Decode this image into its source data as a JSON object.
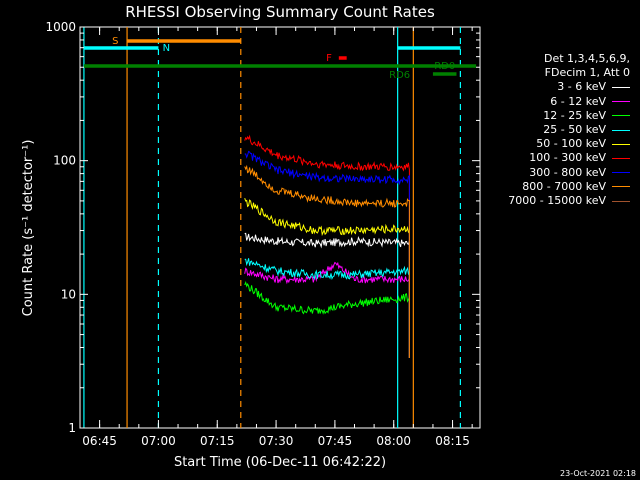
{
  "chart_data": {
    "type": "line",
    "title": "RHESSI Observing Summary Count Rates",
    "xlabel": "Start Time (06-Dec-11 06:42:22)",
    "ylabel": "Count Rate (s⁻¹ detector⁻¹)",
    "yscale": "log",
    "ylim": [
      1,
      1000
    ],
    "xlim": [
      "06:40",
      "08:22"
    ],
    "y_ticks": [
      "1",
      "10",
      "100",
      "1000"
    ],
    "x_ticks": [
      "06:45",
      "07:00",
      "07:15",
      "07:30",
      "07:45",
      "08:00",
      "08:15"
    ],
    "background": "#000000",
    "legend_header": [
      "Det 1,3,4,5,6,9,",
      "FDecim 1, Att 0"
    ],
    "legend_position": "right",
    "series": [
      {
        "name": "3 - 6 keV",
        "color": "#ffffff",
        "x": [
          "07:22",
          "07:30",
          "07:40",
          "07:50",
          "08:04"
        ],
        "values": [
          27,
          25,
          24,
          25,
          24
        ]
      },
      {
        "name": "6 - 12 keV",
        "color": "#ff00ff",
        "x": [
          "07:22",
          "07:30",
          "07:40",
          "07:45",
          "07:50",
          "08:04"
        ],
        "values": [
          15,
          13,
          13,
          17,
          13,
          13
        ]
      },
      {
        "name": "12 - 25 keV",
        "color": "#00ff00",
        "x": [
          "07:22",
          "07:30",
          "07:40",
          "07:50",
          "08:04"
        ],
        "values": [
          12,
          8,
          7.5,
          8.5,
          9.5
        ]
      },
      {
        "name": "25 - 50 keV",
        "color": "#00ffff",
        "x": [
          "07:22",
          "07:30",
          "07:40",
          "07:50",
          "08:04"
        ],
        "values": [
          18,
          15,
          14,
          14,
          15
        ]
      },
      {
        "name": "50 - 100 keV",
        "color": "#ffff00",
        "x": [
          "07:22",
          "07:30",
          "07:40",
          "07:50",
          "08:04"
        ],
        "values": [
          50,
          35,
          30,
          30,
          31
        ]
      },
      {
        "name": "100 - 300 keV",
        "color": "#ff0000",
        "x": [
          "07:22",
          "07:30",
          "07:40",
          "07:50",
          "08:04"
        ],
        "values": [
          150,
          110,
          95,
          90,
          90
        ]
      },
      {
        "name": "300 - 800 keV",
        "color": "#0000ff",
        "x": [
          "07:22",
          "07:30",
          "07:40",
          "07:50",
          "08:04"
        ],
        "values": [
          115,
          85,
          75,
          73,
          72
        ]
      },
      {
        "name": "800 - 7000 keV",
        "color": "#ff8c00",
        "x": [
          "07:22",
          "07:30",
          "07:40",
          "07:50",
          "08:04"
        ],
        "values": [
          90,
          60,
          52,
          48,
          48
        ]
      },
      {
        "name": "7000 - 15000 keV",
        "color": "#a0522d",
        "x": [],
        "values": []
      }
    ],
    "vertical_lines": [
      {
        "time": "06:41",
        "color": "#00ffff",
        "style": "solid"
      },
      {
        "time": "06:52",
        "color": "#ff8c00",
        "style": "solid"
      },
      {
        "time": "07:00",
        "color": "#00ffff",
        "style": "dashed"
      },
      {
        "time": "07:21",
        "color": "#ff8c00",
        "style": "dashed"
      },
      {
        "time": "08:01",
        "color": "#00ffff",
        "style": "solid"
      },
      {
        "time": "08:05",
        "color": "#ff8c00",
        "style": "solid"
      },
      {
        "time": "08:17",
        "color": "#00ffff",
        "style": "dashed"
      }
    ],
    "flag_bars": [
      {
        "label": "S",
        "color": "#ff8c00",
        "start": "06:52",
        "end": "07:21"
      },
      {
        "label": "N",
        "color": "#00ffff",
        "start": "06:41",
        "end": "07:00"
      },
      {
        "label": "",
        "color": "#00ffff",
        "start": "08:01",
        "end": "08:17"
      },
      {
        "label": "",
        "color": "#008000",
        "start": "06:41",
        "end": "08:21"
      },
      {
        "label": "F",
        "color": "#ff0000",
        "start": "07:46",
        "end": "07:48"
      },
      {
        "label": "RD0",
        "color": "#008000",
        "start": "",
        "end": ""
      },
      {
        "label": "RD6",
        "color": "#008000",
        "start": "08:10",
        "end": "08:16"
      }
    ],
    "timestamp": "23-Oct-2021 02:18"
  }
}
